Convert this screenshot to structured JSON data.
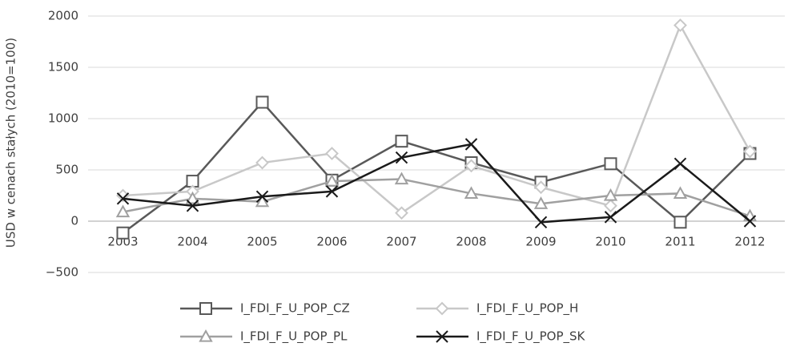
{
  "chart_data": {
    "type": "line",
    "y_label": "USD w cenach stałych (2010=100)",
    "categories": [
      "2003",
      "2004",
      "2005",
      "2006",
      "2007",
      "2008",
      "2009",
      "2010",
      "2011",
      "2012"
    ],
    "series": [
      {
        "name": "I_FDI_F_U_POP_CZ",
        "color": "#595959",
        "marker": "square",
        "values": [
          -115,
          390,
          1160,
          400,
          780,
          570,
          380,
          560,
          -10,
          660
        ]
      },
      {
        "name": "I_FDI_F_U_POP_H",
        "color": "#c8c8c8",
        "marker": "diamond",
        "values": [
          250,
          290,
          570,
          660,
          80,
          540,
          330,
          150,
          1910,
          680
        ]
      },
      {
        "name": "I_FDI_F_U_POP_PL",
        "color": "#a0a0a0",
        "marker": "triangle",
        "values": [
          90,
          220,
          190,
          390,
          410,
          270,
          170,
          250,
          270,
          50
        ]
      },
      {
        "name": "I_FDI_F_U_POP_SK",
        "color": "#1a1a1a",
        "marker": "cross",
        "values": [
          220,
          150,
          240,
          290,
          620,
          750,
          -10,
          40,
          560,
          0
        ]
      }
    ],
    "ylim": [
      -500,
      2000
    ],
    "yticks": [
      {
        "value": -500,
        "label": "−500"
      },
      0,
      500,
      1000,
      1500,
      2000
    ],
    "grid": true,
    "legend": "bottom"
  }
}
